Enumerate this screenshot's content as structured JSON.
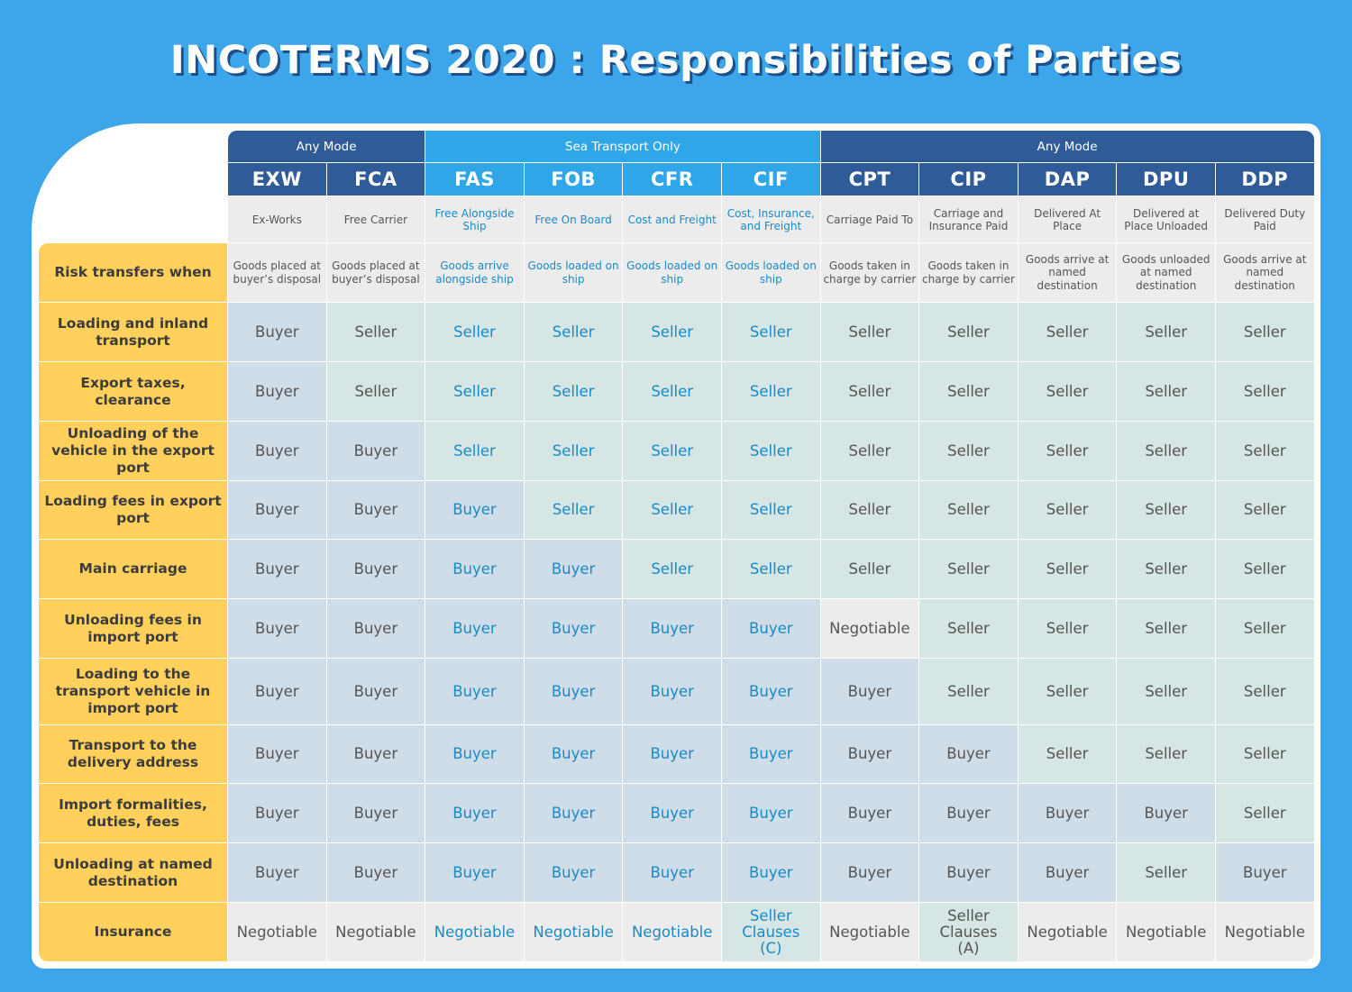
{
  "title": "INCOTERMS 2020 : Responsibilities of Parties",
  "groups": [
    {
      "label": "Any Mode",
      "start": 0,
      "span": 2,
      "kind": "any"
    },
    {
      "label": "Sea Transport Only",
      "start": 2,
      "span": 4,
      "kind": "sea"
    },
    {
      "label": "Any Mode",
      "start": 6,
      "span": 5,
      "kind": "any"
    }
  ],
  "columns": [
    {
      "code": "EXW",
      "name": "Ex-Works",
      "risk": "Goods placed at buyer’s disposal",
      "sea": false
    },
    {
      "code": "FCA",
      "name": "Free Carrier",
      "risk": "Goods placed at buyer’s disposal",
      "sea": false
    },
    {
      "code": "FAS",
      "name": "Free Alongside Ship",
      "risk": "Goods arrive alongside ship",
      "sea": true
    },
    {
      "code": "FOB",
      "name": "Free On Board",
      "risk": "Goods loaded on ship",
      "sea": true
    },
    {
      "code": "CFR",
      "name": "Cost and Freight",
      "risk": "Goods loaded on ship",
      "sea": true
    },
    {
      "code": "CIF",
      "name": "Cost, Insurance, and Freight",
      "risk": "Goods loaded on ship",
      "sea": true
    },
    {
      "code": "CPT",
      "name": "Carriage Paid To",
      "risk": "Goods taken in charge by carrier",
      "sea": false
    },
    {
      "code": "CIP",
      "name": "Carriage and Insurance Paid",
      "risk": "Goods taken in charge by carrier",
      "sea": false
    },
    {
      "code": "DAP",
      "name": "Delivered At Place",
      "risk": "Goods arrive at named destination",
      "sea": false
    },
    {
      "code": "DPU",
      "name": "Delivered at Place Unloaded",
      "risk": "Goods unloaded at named destination",
      "sea": false
    },
    {
      "code": "DDP",
      "name": "Delivered Duty Paid",
      "risk": "Goods arrive at named destination",
      "sea": false
    }
  ],
  "risk_label": "Risk transfers when",
  "rows": [
    {
      "label": "Loading and inland transport",
      "values": [
        "Buyer",
        "Seller",
        "Seller",
        "Seller",
        "Seller",
        "Seller",
        "Seller",
        "Seller",
        "Seller",
        "Seller",
        "Seller"
      ]
    },
    {
      "label": "Export taxes, clearance",
      "values": [
        "Buyer",
        "Seller",
        "Seller",
        "Seller",
        "Seller",
        "Seller",
        "Seller",
        "Seller",
        "Seller",
        "Seller",
        "Seller"
      ]
    },
    {
      "label": "Unloading of the vehicle in the export port",
      "values": [
        "Buyer",
        "Buyer",
        "Seller",
        "Seller",
        "Seller",
        "Seller",
        "Seller",
        "Seller",
        "Seller",
        "Seller",
        "Seller"
      ]
    },
    {
      "label": "Loading fees in export port",
      "values": [
        "Buyer",
        "Buyer",
        "Buyer",
        "Seller",
        "Seller",
        "Seller",
        "Seller",
        "Seller",
        "Seller",
        "Seller",
        "Seller"
      ]
    },
    {
      "label": "Main carriage",
      "values": [
        "Buyer",
        "Buyer",
        "Buyer",
        "Buyer",
        "Seller",
        "Seller",
        "Seller",
        "Seller",
        "Seller",
        "Seller",
        "Seller"
      ]
    },
    {
      "label": "Unloading fees in import port",
      "values": [
        "Buyer",
        "Buyer",
        "Buyer",
        "Buyer",
        "Buyer",
        "Buyer",
        "Negotiable",
        "Seller",
        "Seller",
        "Seller",
        "Seller"
      ]
    },
    {
      "label": "Loading to the transport vehicle in import port",
      "values": [
        "Buyer",
        "Buyer",
        "Buyer",
        "Buyer",
        "Buyer",
        "Buyer",
        "Buyer",
        "Seller",
        "Seller",
        "Seller",
        "Seller"
      ]
    },
    {
      "label": "Transport to the delivery address",
      "values": [
        "Buyer",
        "Buyer",
        "Buyer",
        "Buyer",
        "Buyer",
        "Buyer",
        "Buyer",
        "Buyer",
        "Seller",
        "Seller",
        "Seller"
      ]
    },
    {
      "label": "Import formalities, duties, fees",
      "values": [
        "Buyer",
        "Buyer",
        "Buyer",
        "Buyer",
        "Buyer",
        "Buyer",
        "Buyer",
        "Buyer",
        "Buyer",
        "Buyer",
        "Seller"
      ]
    },
    {
      "label": "Unloading at named destination",
      "values": [
        "Buyer",
        "Buyer",
        "Buyer",
        "Buyer",
        "Buyer",
        "Buyer",
        "Buyer",
        "Buyer",
        "Buyer",
        "Seller",
        "Buyer"
      ]
    },
    {
      "label": "Insurance",
      "values": [
        "Negotiable",
        "Negotiable",
        "Negotiable",
        "Negotiable",
        "Negotiable",
        "Seller Clauses (C)",
        "Negotiable",
        "Seller Clauses (A)",
        "Negotiable",
        "Negotiable",
        "Negotiable"
      ]
    }
  ],
  "colors": {
    "background": "#3da5ea",
    "any_mode_header": "#2f5c99",
    "sea_header": "#2fa6e8",
    "label_yellow": "#ffd05c",
    "buyer_cell": "#cfdde8",
    "seller_cell": "#d5e6e4",
    "neutral_cell": "#ececec",
    "sea_text": "#1a8ac6"
  }
}
